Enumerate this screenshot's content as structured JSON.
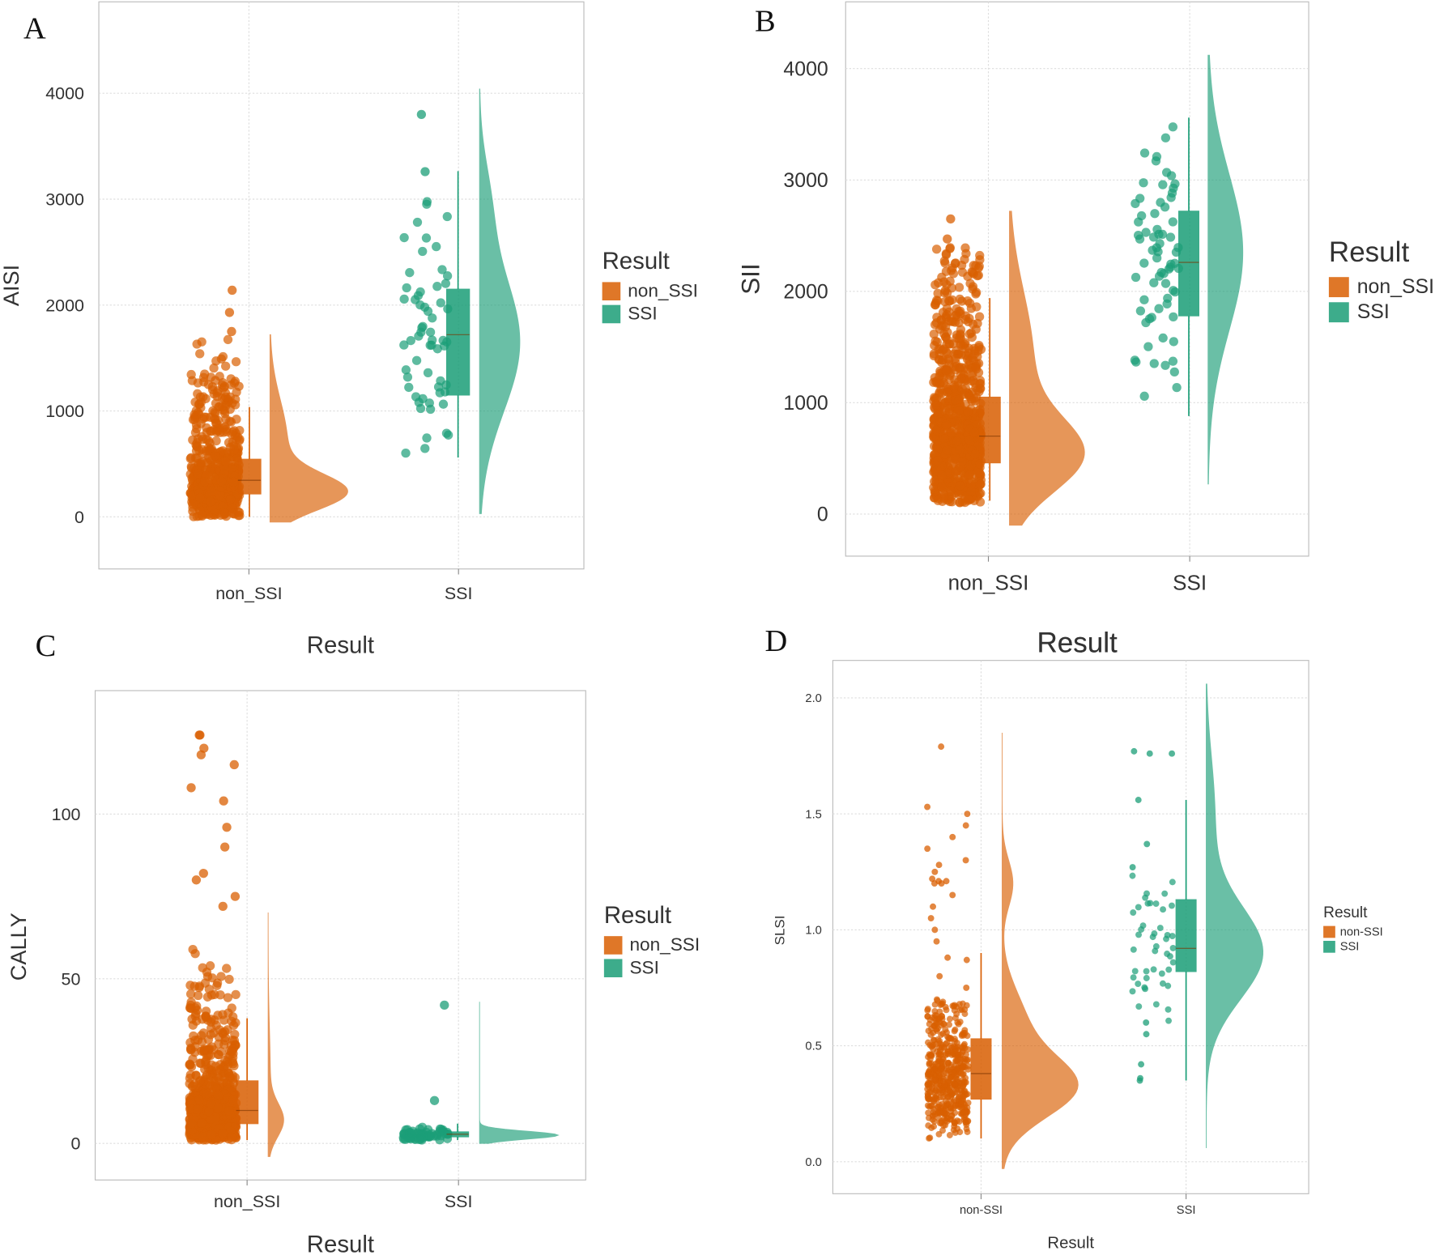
{
  "colors": {
    "non_SSI": "#D95F02",
    "SSI": "#1B9E77"
  },
  "chart_data": [
    {
      "panel": "A",
      "type": "raincloud",
      "ylabel": "AISI",
      "xlabel": "Result",
      "categories": [
        "non_SSI",
        "SSI"
      ],
      "yticks": [
        0,
        1000,
        2000,
        3000,
        4000
      ],
      "ytick_labels": [
        "0",
        "1000",
        "2000",
        "3000",
        "4000"
      ],
      "ylim": [
        -500,
        4350
      ],
      "grid": true,
      "legend": {
        "title": "Result",
        "labels": [
          "non_SSI",
          "SSI"
        ],
        "placement": "right"
      },
      "groups": [
        {
          "box": {
            "q1": 216,
            "median": 345,
            "q3": 544,
            "lower": 0,
            "upper": 1037
          },
          "violin": {
            "range": [
              -50,
              1720
            ],
            "modes": [
              {
                "c": 230,
                "sd": 170,
                "w": 1
              },
              {
                "c": 700,
                "sd": 400,
                "w": 0.25
              }
            ]
          },
          "points": {
            "n": 600,
            "range": [
              0,
              1700
            ],
            "extra": [
              1750,
              1930,
              2140
            ]
          }
        },
        {
          "box": {
            "q1": 1150,
            "median": 1720,
            "q3": 2150,
            "lower": 560,
            "upper": 3265
          },
          "violin": {
            "range": [
              30,
              4040
            ],
            "modes": [
              {
                "c": 1650,
                "sd": 650,
                "w": 1
              },
              {
                "c": 3000,
                "sd": 400,
                "w": 0.2
              }
            ]
          },
          "points": {
            "n": 60,
            "range": [
              550,
              3100
            ],
            "extra": [
              3260,
              3800
            ]
          }
        }
      ]
    },
    {
      "panel": "B",
      "type": "raincloud",
      "ylabel": "SII",
      "xlabel": "Result",
      "categories": [
        "non_SSI",
        "SSI"
      ],
      "yticks": [
        0,
        1000,
        2000,
        3000,
        4000
      ],
      "ytick_labels": [
        "0",
        "1000",
        "2000",
        "3000",
        "4000"
      ],
      "ylim": [
        -370,
        4600
      ],
      "grid": true,
      "legend": {
        "title": "Result",
        "labels": [
          "non_SSI",
          "SSI"
        ],
        "placement": "right"
      },
      "groups": [
        {
          "box": {
            "q1": 460,
            "median": 700,
            "q3": 1050,
            "lower": 120,
            "upper": 1940
          },
          "violin": {
            "range": [
              -100,
              2720
            ],
            "modes": [
              {
                "c": 520,
                "sd": 330,
                "w": 1
              },
              {
                "c": 1400,
                "sd": 600,
                "w": 0.35
              }
            ]
          },
          "points": {
            "n": 900,
            "range": [
              100,
              2400
            ],
            "extra": [
              2470,
              2650
            ]
          }
        },
        {
          "box": {
            "q1": 1780,
            "median": 2260,
            "q3": 2720,
            "lower": 880,
            "upper": 3560
          },
          "violin": {
            "range": [
              270,
              4120
            ],
            "modes": [
              {
                "c": 2350,
                "sd": 700,
                "w": 1
              }
            ]
          },
          "points": {
            "n": 70,
            "range": [
              870,
              3560
            ],
            "extra": []
          }
        }
      ]
    },
    {
      "panel": "C",
      "type": "raincloud",
      "ylabel": "CALLY",
      "xlabel": "Result",
      "categories": [
        "non_SSI",
        "SSI"
      ],
      "yticks": [
        0,
        50,
        100
      ],
      "ytick_labels": [
        "0",
        "50",
        "100"
      ],
      "ylim": [
        -11,
        137
      ],
      "grid": true,
      "legend": {
        "title": "Result",
        "labels": [
          "non_SSI",
          "SSI"
        ],
        "placement": "right"
      },
      "groups": [
        {
          "box": {
            "q1": 6,
            "median": 10,
            "q3": 19,
            "lower": 1,
            "upper": 38
          },
          "violin": {
            "range": [
              -4,
              70
            ],
            "modes": [
              {
                "c": 7,
                "sd": 5,
                "w": 1
              },
              {
                "c": 20,
                "sd": 15,
                "w": 0.15
              }
            ]
          },
          "points": {
            "n": 900,
            "range": [
              1,
              70
            ],
            "extra": [
              72,
              75,
              80,
              82,
              90,
              96,
              104,
              108,
              115,
              118,
              120,
              124,
              124
            ]
          }
        },
        {
          "box": {
            "q1": 2,
            "median": 2.8,
            "q3": 3.5,
            "lower": 1,
            "upper": 6
          },
          "violin": {
            "range": [
              0,
              43
            ],
            "modes": [
              {
                "c": 2.5,
                "sd": 1.2,
                "w": 1
              }
            ]
          },
          "points": {
            "n": 60,
            "range": [
              1,
              5
            ],
            "extra": [
              13,
              42
            ]
          }
        }
      ]
    },
    {
      "panel": "D",
      "type": "raincloud",
      "ylabel": "SLSI",
      "xlabel": "Result",
      "title": "Result",
      "categories": [
        "non-SSI",
        "SSI"
      ],
      "yticks": [
        0,
        0.5,
        1,
        1.5,
        2
      ],
      "ytick_labels": [
        "0.0",
        "0.5",
        "1.0",
        "1.5",
        "2.0"
      ],
      "ylim": [
        -0.14,
        2.16
      ],
      "grid": true,
      "legend": {
        "title": "Result",
        "labels": [
          "non-SSI",
          "SSI"
        ],
        "placement": "right"
      },
      "groups": [
        {
          "box": {
            "q1": 0.27,
            "median": 0.38,
            "q3": 0.53,
            "lower": 0.1,
            "upper": 0.9
          },
          "violin": {
            "range": [
              -0.03,
              1.85
            ],
            "modes": [
              {
                "c": 0.32,
                "sd": 0.13,
                "w": 1
              },
              {
                "c": 0.6,
                "sd": 0.15,
                "w": 0.3
              },
              {
                "c": 1.2,
                "sd": 0.1,
                "w": 0.15
              }
            ]
          },
          "points": {
            "n": 500,
            "range": [
              0.1,
              0.7
            ],
            "extra": [
              0.75,
              0.8,
              0.87,
              0.88,
              0.95,
              1.0,
              1.05,
              1.1,
              1.15,
              1.2,
              1.2,
              1.21,
              1.21,
              1.22,
              1.25,
              1.28,
              1.3,
              1.35,
              1.4,
              1.45,
              1.5,
              1.53,
              1.79
            ]
          }
        },
        {
          "box": {
            "q1": 0.82,
            "median": 0.92,
            "q3": 1.13,
            "lower": 0.35,
            "upper": 1.56
          },
          "violin": {
            "range": [
              0.06,
              2.06
            ],
            "modes": [
              {
                "c": 0.9,
                "sd": 0.2,
                "w": 1
              },
              {
                "c": 1.5,
                "sd": 0.25,
                "w": 0.15
              }
            ]
          },
          "points": {
            "n": 45,
            "range": [
              0.6,
              1.25
            ],
            "extra": [
              0.35,
              0.36,
              0.42,
              0.55,
              0.6,
              1.27,
              1.37,
              1.56,
              1.76,
              1.76,
              1.77
            ]
          }
        }
      ]
    }
  ]
}
